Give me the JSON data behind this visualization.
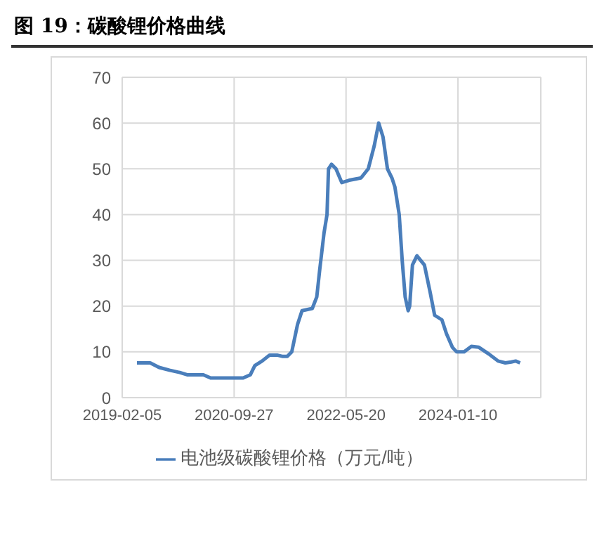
{
  "chart_data": {
    "type": "line",
    "title": "图 19：碳酸锂价格曲线",
    "x": [
      "2019-04-25",
      "2019-07-05",
      "2019-08-22",
      "2019-10-16",
      "2019-12-10",
      "2020-01-19",
      "2020-04-15",
      "2020-05-24",
      "2020-11-14",
      "2020-12-23",
      "2021-01-16",
      "2021-02-24",
      "2021-04-05",
      "2021-05-15",
      "2021-06-15",
      "2021-07-09",
      "2021-08-02",
      "2021-09-02",
      "2021-09-26",
      "2021-11-20",
      "2021-12-14",
      "2021-12-30",
      "2022-01-22",
      "2022-02-07",
      "2022-02-15",
      "2022-03-03",
      "2022-03-27",
      "2022-04-27",
      "2022-06-06",
      "2022-08-08",
      "2022-09-16",
      "2022-10-18",
      "2022-11-11",
      "2022-12-04",
      "2022-12-28",
      "2023-01-21",
      "2023-02-06",
      "2023-03-01",
      "2023-03-17",
      "2023-04-02",
      "2023-04-18",
      "2023-04-26",
      "2023-05-11",
      "2023-06-04",
      "2023-07-14",
      "2023-08-14",
      "2023-09-07",
      "2023-10-16",
      "2023-11-09",
      "2023-12-11",
      "2024-01-03",
      "2024-02-12",
      "2024-03-22",
      "2024-05-01",
      "2024-06-25",
      "2024-08-12",
      "2024-09-20",
      "2024-10-22",
      "2024-11-14",
      "2024-12-08"
    ],
    "series": [
      {
        "name": "电池级碳酸锂价格（万元/吨）",
        "color": "#4a7ebb",
        "values": [
          7.6,
          7.6,
          6.6,
          6,
          5.5,
          5,
          5,
          4.3,
          4.3,
          5,
          7,
          8,
          9.3,
          9.3,
          9,
          9,
          10,
          16,
          19,
          19.5,
          22,
          28,
          36,
          40,
          50,
          51,
          50,
          47,
          47.5,
          48,
          50,
          55,
          60,
          57,
          50,
          48,
          46,
          40,
          30,
          22,
          19,
          20,
          29,
          31,
          29,
          23,
          18,
          17,
          14,
          11,
          10,
          10,
          11.2,
          11,
          9.5,
          8,
          7.6,
          7.8,
          8,
          7.6
        ]
      }
    ],
    "xlim": [
      "2019-02-05",
      "2025-03-29"
    ],
    "xticks": [
      "2019-02-05",
      "2020-09-27",
      "2022-05-20",
      "2024-01-10"
    ],
    "ylim": [
      0,
      70
    ],
    "yticks": [
      0,
      10,
      20,
      30,
      40,
      50,
      60,
      70
    ],
    "grid": true,
    "legend": "bottom",
    "marker": "none",
    "line_style": "solid"
  }
}
